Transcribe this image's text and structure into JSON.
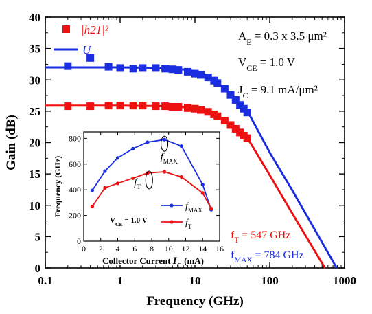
{
  "chart_data": [
    {
      "type": "line",
      "title": "",
      "xlabel": "Frequency (GHz)",
      "ylabel": "Gain (dB)",
      "xscale": "log",
      "xlim": [
        0.1,
        1000
      ],
      "ylim": [
        0,
        40
      ],
      "x_ticks": [
        0.1,
        1,
        10,
        100,
        1000
      ],
      "x_tick_labels": [
        "0.1",
        "1",
        "10",
        "100",
        "1000"
      ],
      "y_ticks": [
        0,
        5,
        10,
        15,
        20,
        25,
        30,
        35,
        40
      ],
      "y_tick_labels": [
        "0",
        "5",
        "10",
        "15",
        "20",
        "25",
        "30",
        "35",
        "40"
      ],
      "grid": false,
      "legend_position": "top-left",
      "legend": [
        {
          "label": "|h21|²",
          "marker": "square",
          "color": "#ee1111"
        },
        {
          "label": "U",
          "marker": "line",
          "color": "#1a2ee0"
        }
      ],
      "series": [
        {
          "name": "|h21|² (measured)",
          "kind": "markers",
          "color": "#ee1111",
          "x": [
            0.2,
            0.4,
            0.7,
            1.0,
            1.5,
            2.0,
            3.0,
            4.0,
            5.0,
            6.0,
            8.0,
            10.0,
            12.0,
            15.0,
            18.0,
            20.0,
            25.0,
            30.0,
            35.0,
            40.0,
            45.0,
            50.0
          ],
          "y": [
            25.8,
            25.8,
            25.9,
            25.9,
            25.9,
            25.9,
            25.8,
            25.8,
            25.7,
            25.7,
            25.5,
            25.4,
            25.2,
            24.9,
            24.5,
            24.2,
            23.5,
            22.8,
            22.2,
            21.6,
            21.1,
            20.7
          ]
        },
        {
          "name": "|h21|² (fit)",
          "kind": "line",
          "color": "#ee1111",
          "x": [
            0.1,
            1,
            5,
            10,
            20,
            50,
            100,
            200,
            547
          ],
          "y": [
            25.9,
            25.9,
            25.8,
            25.5,
            24.4,
            20.8,
            14.8,
            8.7,
            0
          ]
        },
        {
          "name": "U (measured)",
          "kind": "markers",
          "color": "#1a2ee0",
          "x": [
            0.2,
            0.4,
            0.7,
            1.0,
            1.5,
            2.0,
            3.0,
            4.0,
            5.0,
            6.0,
            8.0,
            10.0,
            12.0,
            15.0,
            18.0,
            20.0,
            25.0,
            30.0,
            35.0,
            40.0,
            45.0,
            50.0
          ],
          "y": [
            32.2,
            33.5,
            32.1,
            31.9,
            31.8,
            31.9,
            31.9,
            31.8,
            31.7,
            31.6,
            31.3,
            31.0,
            30.8,
            30.4,
            29.9,
            29.5,
            28.6,
            27.6,
            26.8,
            26.0,
            25.4,
            24.8
          ]
        },
        {
          "name": "U (fit)",
          "kind": "line",
          "color": "#1a2ee0",
          "x": [
            0.1,
            1,
            5,
            10,
            20,
            50,
            100,
            200,
            784
          ],
          "y": [
            32.0,
            32.0,
            31.9,
            31.4,
            29.6,
            25.1,
            18.4,
            12.4,
            0
          ]
        }
      ],
      "annotations": [
        {
          "key": "ae",
          "lines": [
            "A_E = 0.3 x 3.5 μm²"
          ]
        },
        {
          "key": "vce",
          "lines": [
            "V_CE = 1.0 V"
          ]
        },
        {
          "key": "jc",
          "lines": [
            "J_C = 9.1 mA/μm²"
          ]
        },
        {
          "key": "ft",
          "text": "f_T = 547 GHz",
          "color": "#ee1111"
        },
        {
          "key": "fmax",
          "text": "f_MAX = 784 GHz",
          "color": "#1a2ee0"
        }
      ]
    },
    {
      "type": "line",
      "title": "",
      "inset": true,
      "xlabel": "Collector Current I_C (mA)",
      "ylabel": "Frequency (GHz)",
      "xlim": [
        0,
        16
      ],
      "ylim": [
        0,
        850
      ],
      "x_ticks": [
        0,
        2,
        4,
        6,
        8,
        10,
        12,
        14,
        16
      ],
      "x_tick_labels": [
        "0",
        "2",
        "4",
        "6",
        "8",
        "10",
        "12",
        "14",
        "16"
      ],
      "y_ticks": [
        0,
        200,
        400,
        600,
        800
      ],
      "y_tick_labels": [
        "0",
        "200",
        "400",
        "600",
        "800"
      ],
      "grid": false,
      "legend_position": "bottom-right",
      "series": [
        {
          "name": "fMAX",
          "color": "#1a2ee0",
          "x": [
            1.0,
            2.5,
            4.0,
            5.8,
            7.5,
            9.5,
            11.5,
            14.0,
            15.0
          ],
          "y": [
            395,
            545,
            648,
            720,
            770,
            790,
            740,
            440,
            245
          ]
        },
        {
          "name": "fT",
          "color": "#ee1111",
          "x": [
            1.0,
            2.5,
            4.0,
            5.8,
            7.5,
            9.5,
            11.5,
            14.0,
            15.0
          ],
          "y": [
            270,
            415,
            450,
            490,
            530,
            540,
            500,
            375,
            255
          ]
        }
      ],
      "annotations": [
        {
          "key": "vce_inset",
          "text": "V_CE = 1.0 V"
        },
        {
          "key": "fmax_label",
          "text": "f_MAX"
        },
        {
          "key": "ft_label",
          "text": "f_T"
        }
      ]
    }
  ]
}
